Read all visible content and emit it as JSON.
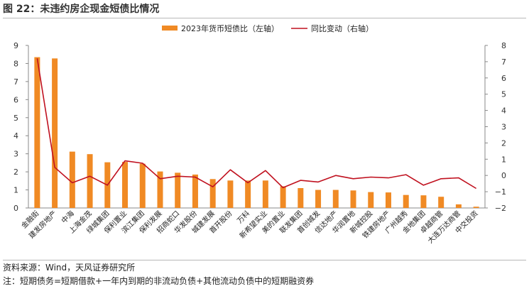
{
  "figure": {
    "title": "图 22：未违约房企现金短债比情况",
    "source": "资料来源：Wind，天风证券研究所",
    "note": "注：短期债务=短期借款+一年内到期的非流动负债+其他流动负债中的短期融资券"
  },
  "colors": {
    "bar": "#f08a24",
    "line": "#c0111f",
    "axis": "#888888"
  },
  "chart_data": {
    "type": "bar",
    "categories": [
      "金融街",
      "建发房地产",
      "中海",
      "上海金茂",
      "绿城集团",
      "保利置业",
      "滨江集团",
      "保利发展",
      "招商蛇口",
      "华发股份",
      "城建发展",
      "首开股份",
      "万科",
      "新希望实业",
      "美的置业",
      "联发集团",
      "首创城发",
      "信达地产",
      "华润置地",
      "新城控股",
      "铁建房地产",
      "广州越秀",
      "金地集团",
      "卓越商管",
      "大连万达商管",
      "中交投资"
    ],
    "series": [
      {
        "name": "2023年货币短债比（左轴）",
        "axis": "left",
        "type": "bar",
        "values": [
          8.35,
          8.28,
          3.12,
          2.98,
          2.53,
          2.55,
          2.45,
          2.02,
          1.95,
          1.85,
          1.6,
          1.52,
          1.52,
          1.52,
          1.2,
          1.1,
          1.0,
          1.0,
          0.97,
          0.88,
          0.86,
          0.72,
          0.7,
          0.62,
          0.2,
          0.07
        ]
      },
      {
        "name": "同比变动（右轴）",
        "axis": "right",
        "type": "line",
        "values": [
          7.2,
          0.5,
          -0.45,
          -0.05,
          -0.6,
          0.9,
          0.75,
          -0.2,
          -0.05,
          -0.1,
          -0.7,
          0.35,
          -0.45,
          0.3,
          -0.75,
          -0.3,
          -0.4,
          0.0,
          -0.2,
          -0.1,
          -0.15,
          0.05,
          -0.6,
          -0.2,
          -0.15,
          -0.8
        ]
      }
    ],
    "ylim_left": [
      0,
      9
    ],
    "yticks_left": [
      "0",
      "1",
      "2",
      "3",
      "4",
      "5",
      "6",
      "7",
      "8",
      "9"
    ],
    "ylim_right": [
      -2,
      8
    ],
    "yticks_right": [
      "−2",
      "−1",
      "0",
      "1",
      "2",
      "3",
      "4",
      "5",
      "6",
      "7",
      "8"
    ],
    "legend_position": "top-center",
    "grid": false
  }
}
